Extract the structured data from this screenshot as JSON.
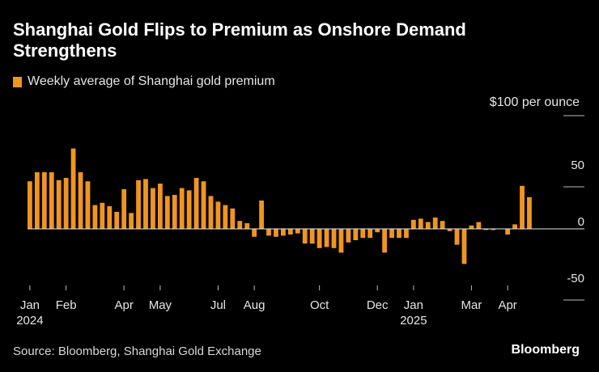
{
  "chart_data": {
    "type": "bar",
    "title": "Shanghai Gold Flips to Premium as Onshore Demand Strengthens",
    "legend": [
      "Weekly average of Shanghai gold premium"
    ],
    "unit_label": "$100 per ounce",
    "ylim": [
      -55,
      105
    ],
    "yticks": [
      50,
      0,
      -50
    ],
    "ytick_labels": [
      "50",
      "0",
      "-50"
    ],
    "series": [
      {
        "name": "Weekly average of Shanghai gold premium",
        "color": "#f0951f",
        "values": [
          42,
          50,
          50,
          50,
          43,
          45,
          71,
          50,
          42,
          21,
          23,
          20,
          15,
          35,
          14,
          43,
          44,
          36,
          40,
          29,
          30,
          36,
          34,
          45,
          42,
          29,
          24,
          21,
          18,
          7,
          5,
          -7,
          25,
          -6,
          -7,
          -6,
          -5,
          -4,
          -13,
          -13,
          -17,
          -16,
          -17,
          -21,
          -12,
          -10,
          -8,
          -8,
          -3,
          -21,
          -8,
          -8,
          -8,
          8,
          9,
          6,
          10,
          7,
          -2,
          -14,
          -31,
          3,
          6,
          -1,
          -1,
          0,
          -5,
          4,
          38,
          28
        ]
      }
    ],
    "xtick_labels": [
      {
        "label": "Jan",
        "sub": "2024",
        "index": 0
      },
      {
        "label": "Feb",
        "sub": "",
        "index": 5
      },
      {
        "label": "Apr",
        "sub": "",
        "index": 13
      },
      {
        "label": "May",
        "sub": "",
        "index": 18
      },
      {
        "label": "Jul",
        "sub": "",
        "index": 26
      },
      {
        "label": "Aug",
        "sub": "",
        "index": 31
      },
      {
        "label": "Oct",
        "sub": "",
        "index": 40
      },
      {
        "label": "Dec",
        "sub": "",
        "index": 48
      },
      {
        "label": "Jan",
        "sub": "2025",
        "index": 53
      },
      {
        "label": "Mar",
        "sub": "",
        "index": 61
      },
      {
        "label": "Apr",
        "sub": "",
        "index": 66
      }
    ]
  },
  "header": {
    "title": "Shanghai Gold Flips to Premium as Onshore Demand Strengthens",
    "legend_label": "Weekly average of Shanghai gold premium",
    "unit": "$100 per ounce"
  },
  "footer": {
    "source": "Source: Bloomberg, Shanghai Gold Exchange",
    "brand": "Bloomberg"
  }
}
